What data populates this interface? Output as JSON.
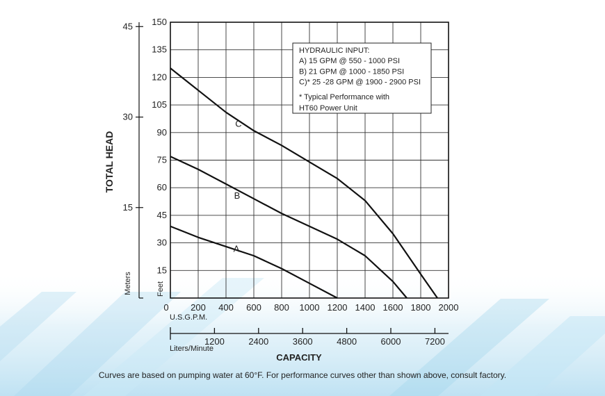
{
  "chart_data": {
    "type": "line",
    "xlabel": "CAPACITY",
    "ylabel": "TOTAL HEAD",
    "x_unit": "U.S.G.P.M.",
    "y_unit": "Feet",
    "xlim": [
      0,
      2000
    ],
    "ylim": [
      0,
      150
    ],
    "x_ticks": [
      "0",
      "200",
      "400",
      "600",
      "800",
      "1000",
      "1200",
      "1400",
      "1600",
      "1800",
      "2000"
    ],
    "y_ticks": [
      "15",
      "30",
      "45",
      "60",
      "75",
      "90",
      "105",
      "120",
      "135",
      "150"
    ],
    "secondary_x_unit": "Liters/Minute",
    "secondary_x_ticks": [
      "1200",
      "2400",
      "3600",
      "4800",
      "6000",
      "7200"
    ],
    "secondary_y_unit": "Meters",
    "secondary_y_ticks": [
      "15",
      "30",
      "45"
    ],
    "grid": true,
    "legend_position": "top-right",
    "legend_lines": [
      "HYDRAULIC INPUT:",
      "A) 15 GPM @ 550 - 1000 PSI",
      "B) 21 GPM @ 1000 - 1850 PSI",
      "C)* 25 -28 GPM @ 1900 - 2900 PSI",
      "* Typical Performance with",
      "HT60 Power Unit"
    ],
    "series": [
      {
        "name": "A",
        "x": [
          0,
          200,
          400,
          600,
          800,
          1000,
          1200
        ],
        "y": [
          39,
          33,
          28,
          23,
          16,
          8,
          0
        ]
      },
      {
        "name": "B",
        "x": [
          0,
          200,
          400,
          600,
          800,
          1000,
          1200,
          1400,
          1600,
          1700
        ],
        "y": [
          77,
          70,
          62,
          54,
          46,
          39,
          32,
          23,
          9,
          0
        ]
      },
      {
        "name": "C",
        "x": [
          0,
          200,
          400,
          600,
          800,
          1000,
          1200,
          1400,
          1600,
          1800,
          1920
        ],
        "y": [
          125,
          113,
          101,
          91,
          83,
          74,
          65,
          53,
          35,
          13,
          0
        ]
      }
    ]
  },
  "footnote": "Curves are based on pumping water at 60°F. For performance curves other than shown above, consult factory."
}
